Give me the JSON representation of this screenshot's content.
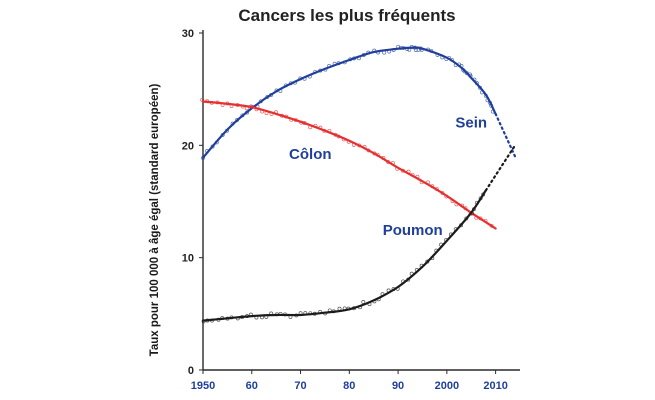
{
  "chart_data": {
    "type": "line",
    "title": "Cancers les plus fréquents",
    "xlabel": "",
    "ylabel": "Taux pour 100 000 à âge égal (standard européen)",
    "xlim": [
      1950,
      2015
    ],
    "ylim": [
      0,
      30
    ],
    "x_ticks": [
      1950,
      1960,
      1970,
      1980,
      1990,
      2000,
      2010
    ],
    "x_tick_labels": [
      "1950",
      "60",
      "70",
      "80",
      "90",
      "2000",
      "2010"
    ],
    "y_ticks": [
      0,
      10,
      20,
      30
    ],
    "y_tick_labels": [
      "0",
      "10",
      "20",
      "30"
    ],
    "grid": false,
    "series": [
      {
        "name": "Sein",
        "color": "#1f3f9a",
        "x": [
          1950,
          1955,
          1960,
          1965,
          1970,
          1975,
          1980,
          1985,
          1990,
          1993,
          1995,
          2000,
          2003,
          2005,
          2008,
          2010
        ],
        "values": [
          18.9,
          21.4,
          23.3,
          24.8,
          25.9,
          26.8,
          27.6,
          28.3,
          28.6,
          28.7,
          28.6,
          27.8,
          26.9,
          26.0,
          24.5,
          22.8
        ],
        "projection": {
          "x": [
            2010,
            2014
          ],
          "values": [
            22.8,
            19.0
          ]
        }
      },
      {
        "name": "Côlon",
        "color": "#e43030",
        "x": [
          1950,
          1955,
          1960,
          1965,
          1970,
          1975,
          1980,
          1985,
          1990,
          1995,
          2000,
          2005,
          2010
        ],
        "values": [
          23.9,
          23.7,
          23.4,
          22.8,
          22.1,
          21.3,
          20.4,
          19.3,
          18.0,
          16.8,
          15.5,
          14.0,
          12.6
        ]
      },
      {
        "name": "Poumon",
        "color": "#1b1b1b",
        "x": [
          1950,
          1955,
          1960,
          1965,
          1970,
          1975,
          1980,
          1985,
          1990,
          1995,
          2000,
          2005,
          2008
        ],
        "values": [
          4.4,
          4.6,
          4.8,
          4.9,
          4.9,
          5.1,
          5.4,
          6.2,
          7.4,
          9.2,
          11.5,
          14.0,
          16.0
        ],
        "projection": {
          "x": [
            2008,
            2014
          ],
          "values": [
            16.0,
            20.0
          ]
        }
      }
    ],
    "annotations": [
      {
        "text": "Sein",
        "series": "Sein",
        "x": 2005,
        "y": 21.6
      },
      {
        "text": "Côlon",
        "series": "Côlon",
        "x": 1972,
        "y": 18.8
      },
      {
        "text": "Poumon",
        "series": "Poumon",
        "x": 1993,
        "y": 12.0
      }
    ]
  },
  "style": {
    "axis_color": "#2a2a2a",
    "x_tick_color": "#1f3f9a",
    "title_color": "#222222"
  }
}
